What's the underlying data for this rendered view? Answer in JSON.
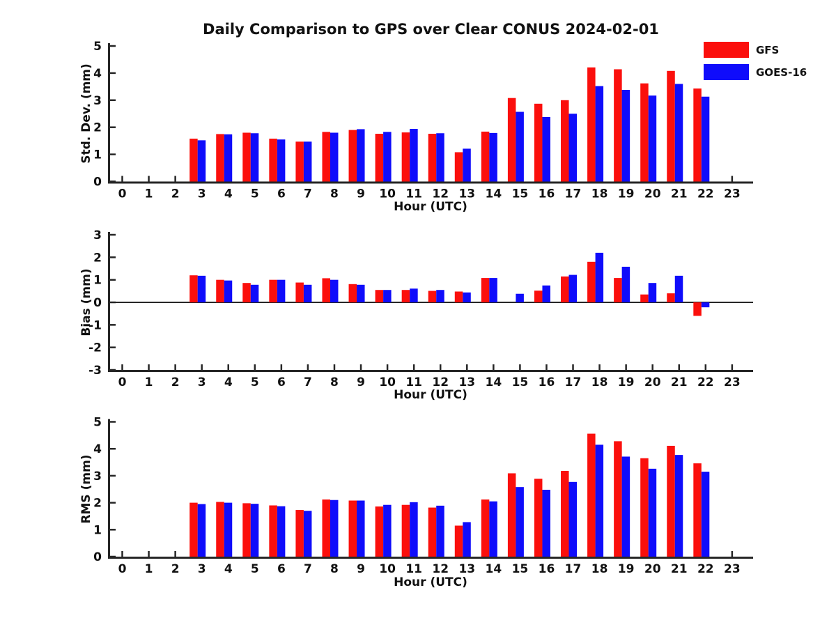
{
  "title": "Daily Comparison to GPS over Clear CONUS 2024-02-01",
  "legend": {
    "items": [
      {
        "label": "GFS",
        "color": "#fb0f0c"
      },
      {
        "label": "GOES-16",
        "color": "#0f0cfb"
      }
    ]
  },
  "colors": {
    "gfs_red": "#fb0f0c",
    "goes_blue": "#0f0cfb",
    "axis": "#262626"
  },
  "chart_data": [
    {
      "type": "bar",
      "ylabel": "Std. Dev. (mm)",
      "xlabel": "Hour (UTC)",
      "ylim": [
        0,
        5
      ],
      "yticks": [
        0,
        1,
        2,
        3,
        4,
        5
      ],
      "grid": false,
      "legend_position": "upper-right-outside",
      "categories": [
        "0",
        "1",
        "2",
        "3",
        "4",
        "5",
        "6",
        "7",
        "8",
        "9",
        "10",
        "11",
        "12",
        "13",
        "14",
        "15",
        "16",
        "17",
        "18",
        "19",
        "20",
        "21",
        "22",
        "23"
      ],
      "series": [
        {
          "name": "GFS",
          "color": "#fb0f0c",
          "values": [
            null,
            null,
            null,
            1.58,
            1.75,
            1.8,
            1.58,
            1.47,
            1.83,
            1.9,
            1.76,
            1.81,
            1.76,
            1.08,
            1.84,
            3.08,
            2.87,
            3.0,
            4.21,
            4.14,
            3.62,
            4.08,
            3.43,
            null
          ]
        },
        {
          "name": "GOES-16",
          "color": "#0f0cfb",
          "values": [
            null,
            null,
            null,
            1.52,
            1.74,
            1.78,
            1.55,
            1.47,
            1.8,
            1.93,
            1.83,
            1.94,
            1.78,
            1.21,
            1.79,
            2.57,
            2.38,
            2.5,
            3.52,
            3.38,
            3.17,
            3.6,
            3.13,
            null
          ]
        }
      ]
    },
    {
      "type": "bar",
      "ylabel": "Bias (mm)",
      "xlabel": "Hour (UTC)",
      "ylim": [
        -3,
        3
      ],
      "yticks": [
        -3,
        -2,
        -1,
        0,
        1,
        2,
        3
      ],
      "grid": false,
      "zero_line": true,
      "categories": [
        "0",
        "1",
        "2",
        "3",
        "4",
        "5",
        "6",
        "7",
        "8",
        "9",
        "10",
        "11",
        "12",
        "13",
        "14",
        "15",
        "16",
        "17",
        "18",
        "19",
        "20",
        "21",
        "22",
        "23"
      ],
      "series": [
        {
          "name": "GFS",
          "color": "#fb0f0c",
          "values": [
            null,
            null,
            null,
            1.2,
            1.0,
            0.86,
            1.0,
            0.88,
            1.07,
            0.81,
            0.55,
            0.55,
            0.51,
            0.48,
            1.08,
            null,
            0.52,
            1.15,
            1.8,
            1.08,
            0.35,
            0.4,
            -0.6,
            null
          ]
        },
        {
          "name": "GOES-16",
          "color": "#0f0cfb",
          "values": [
            null,
            null,
            null,
            1.18,
            0.97,
            0.78,
            1.0,
            0.78,
            1.0,
            0.78,
            0.55,
            0.61,
            0.55,
            0.44,
            1.08,
            0.38,
            0.75,
            1.22,
            2.2,
            1.58,
            0.86,
            1.18,
            -0.22,
            null
          ]
        }
      ]
    },
    {
      "type": "bar",
      "ylabel": "RMS (mm)",
      "xlabel": "Hour (UTC)",
      "ylim": [
        0,
        5
      ],
      "yticks": [
        0,
        1,
        2,
        3,
        4,
        5
      ],
      "grid": false,
      "categories": [
        "0",
        "1",
        "2",
        "3",
        "4",
        "5",
        "6",
        "7",
        "8",
        "9",
        "10",
        "11",
        "12",
        "13",
        "14",
        "15",
        "16",
        "17",
        "18",
        "19",
        "20",
        "21",
        "22",
        "23"
      ],
      "series": [
        {
          "name": "GFS",
          "color": "#fb0f0c",
          "values": [
            null,
            null,
            null,
            2.0,
            2.03,
            1.98,
            1.9,
            1.73,
            2.12,
            2.08,
            1.86,
            1.92,
            1.82,
            1.15,
            2.12,
            3.09,
            2.89,
            3.18,
            4.56,
            4.28,
            3.65,
            4.11,
            3.46,
            null
          ]
        },
        {
          "name": "GOES-16",
          "color": "#0f0cfb",
          "values": [
            null,
            null,
            null,
            1.95,
            2.0,
            1.96,
            1.87,
            1.7,
            2.1,
            2.08,
            1.92,
            2.02,
            1.89,
            1.28,
            2.05,
            2.58,
            2.48,
            2.77,
            4.15,
            3.71,
            3.26,
            3.77,
            3.15,
            null
          ]
        }
      ]
    }
  ]
}
